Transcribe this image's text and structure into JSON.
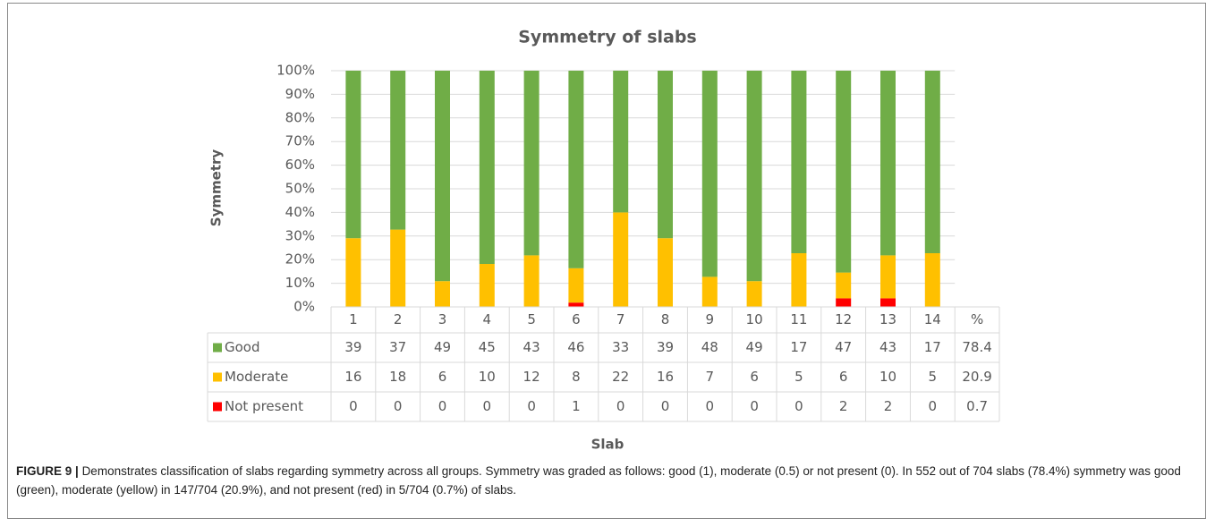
{
  "chart_data": {
    "type": "bar",
    "stacked": true,
    "normalized": true,
    "title": "Symmetry of slabs",
    "x_label": "Slab",
    "y_label": "Symmetry",
    "categories": [
      "1",
      "2",
      "3",
      "4",
      "5",
      "6",
      "7",
      "8",
      "9",
      "10",
      "11",
      "12",
      "13",
      "14"
    ],
    "total_label": "%",
    "series": [
      {
        "name": "Good",
        "color": "#70ad47",
        "values": [
          39,
          37,
          49,
          45,
          43,
          46,
          33,
          39,
          48,
          49,
          17,
          47,
          43,
          17
        ],
        "total": 78.4
      },
      {
        "name": "Moderate",
        "color": "#ffc000",
        "values": [
          16,
          18,
          6,
          10,
          12,
          8,
          22,
          16,
          7,
          6,
          5,
          6,
          10,
          5
        ],
        "total": 20.9
      },
      {
        "name": "Not present",
        "color": "#ff0000",
        "values": [
          0,
          0,
          0,
          0,
          0,
          1,
          0,
          0,
          0,
          0,
          0,
          2,
          2,
          0
        ],
        "total": 0.7
      }
    ],
    "ylim": [
      0,
      100
    ],
    "yticks": [
      {
        "value": 0,
        "label": "0%"
      },
      {
        "value": 10,
        "label": "10%"
      },
      {
        "value": 20,
        "label": "20%"
      },
      {
        "value": 30,
        "label": "30%"
      },
      {
        "value": 40,
        "label": "40%"
      },
      {
        "value": 50,
        "label": "50%"
      },
      {
        "value": 60,
        "label": "60%"
      },
      {
        "value": 70,
        "label": "70%"
      },
      {
        "value": 80,
        "label": "80%"
      },
      {
        "value": 90,
        "label": "90%"
      },
      {
        "value": 100,
        "label": "100%"
      }
    ],
    "grid": true
  },
  "caption": {
    "label": "FIGURE 9 |",
    "text": "Demonstrates classification of slabs regarding symmetry across all groups. Symmetry was graded as follows: good (1), moderate (0.5) or not present (0). In 552 out of 704 slabs (78.4%) symmetry was good (green), moderate (yellow) in 147/704 (20.9%), and not present (red) in 5/704 (0.7%) of slabs."
  }
}
